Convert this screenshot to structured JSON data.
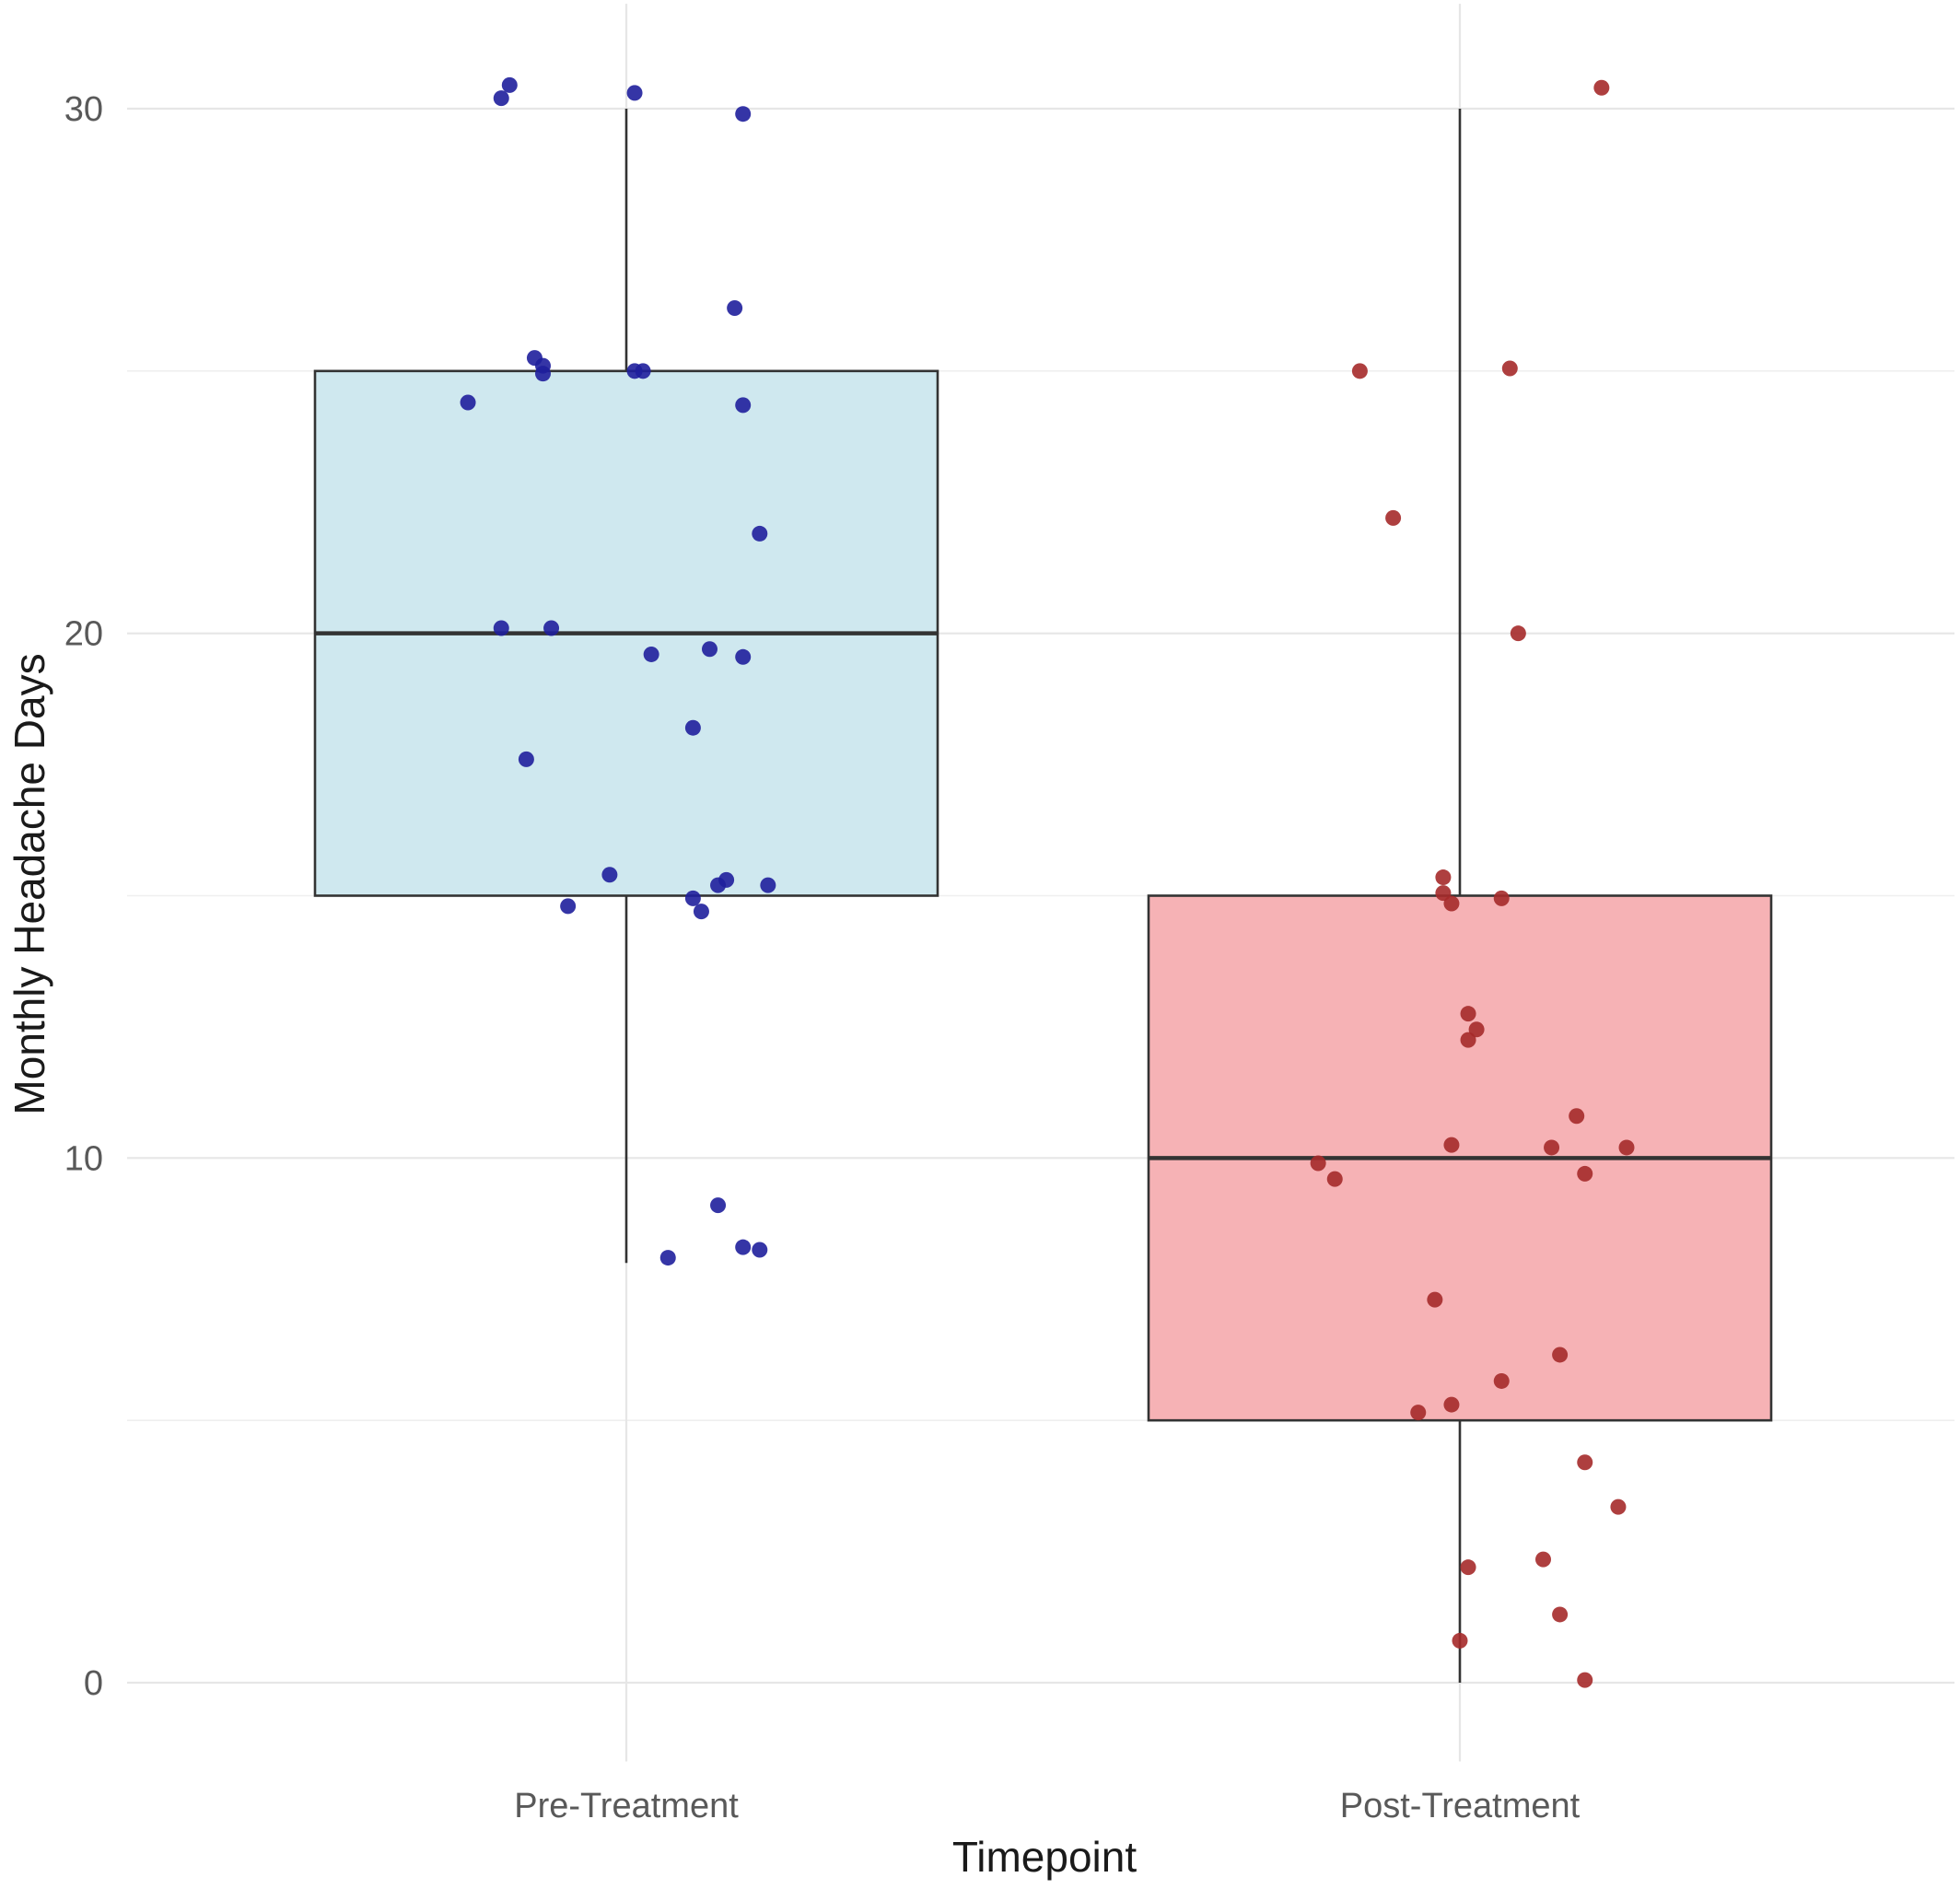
{
  "chart_data": {
    "type": "boxplot",
    "title": "",
    "xlabel": "Timepoint",
    "ylabel": "Monthly Headache Days",
    "ylim": [
      -1.5,
      32
    ],
    "yticks": [
      0,
      10,
      20,
      30
    ],
    "grid": true,
    "legend": "none",
    "categories": [
      "Pre-Treatment",
      "Post-Treatment"
    ],
    "boxes": [
      {
        "category": "Pre-Treatment",
        "whisker_low": 8,
        "q1": 15,
        "median": 20,
        "q3": 25,
        "whisker_high": 30,
        "fill": "#cfe8ef",
        "point_color": "#1f1f9c",
        "points": [
          {
            "dx": -0.15,
            "y": 30.2
          },
          {
            "dx": -0.14,
            "y": 30.45
          },
          {
            "dx": 0.01,
            "y": 30.3
          },
          {
            "dx": 0.14,
            "y": 29.9
          },
          {
            "dx": 0.13,
            "y": 26.2
          },
          {
            "dx": -0.11,
            "y": 25.25
          },
          {
            "dx": -0.1,
            "y": 25.1
          },
          {
            "dx": -0.1,
            "y": 24.95
          },
          {
            "dx": 0.01,
            "y": 25.0
          },
          {
            "dx": 0.02,
            "y": 25.0
          },
          {
            "dx": -0.19,
            "y": 24.4
          },
          {
            "dx": 0.14,
            "y": 24.35
          },
          {
            "dx": 0.16,
            "y": 21.9
          },
          {
            "dx": -0.15,
            "y": 20.1
          },
          {
            "dx": -0.09,
            "y": 20.1
          },
          {
            "dx": 0.03,
            "y": 19.6
          },
          {
            "dx": 0.1,
            "y": 19.7
          },
          {
            "dx": 0.14,
            "y": 19.55
          },
          {
            "dx": 0.08,
            "y": 18.2
          },
          {
            "dx": -0.12,
            "y": 17.6
          },
          {
            "dx": -0.02,
            "y": 15.4
          },
          {
            "dx": 0.12,
            "y": 15.3
          },
          {
            "dx": 0.11,
            "y": 15.2
          },
          {
            "dx": 0.17,
            "y": 15.2
          },
          {
            "dx": 0.08,
            "y": 14.95
          },
          {
            "dx": -0.07,
            "y": 14.8
          },
          {
            "dx": 0.09,
            "y": 14.7
          },
          {
            "dx": 0.11,
            "y": 9.1
          },
          {
            "dx": 0.14,
            "y": 8.3
          },
          {
            "dx": 0.16,
            "y": 8.25
          },
          {
            "dx": 0.05,
            "y": 8.1
          }
        ]
      },
      {
        "category": "Post-Treatment",
        "whisker_low": 0,
        "q1": 5,
        "median": 10,
        "q3": 15,
        "whisker_high": 30,
        "fill": "#f6b2b5",
        "point_color": "#a52a2a",
        "points": [
          {
            "dx": 0.17,
            "y": 30.4
          },
          {
            "dx": -0.12,
            "y": 25.0
          },
          {
            "dx": 0.06,
            "y": 25.05
          },
          {
            "dx": -0.08,
            "y": 22.2
          },
          {
            "dx": 0.07,
            "y": 20.0
          },
          {
            "dx": -0.02,
            "y": 15.35
          },
          {
            "dx": -0.02,
            "y": 15.05
          },
          {
            "dx": -0.01,
            "y": 14.85
          },
          {
            "dx": 0.05,
            "y": 14.95
          },
          {
            "dx": 0.01,
            "y": 12.75
          },
          {
            "dx": 0.02,
            "y": 12.45
          },
          {
            "dx": 0.01,
            "y": 12.25
          },
          {
            "dx": 0.14,
            "y": 10.8
          },
          {
            "dx": -0.01,
            "y": 10.25
          },
          {
            "dx": 0.11,
            "y": 10.2
          },
          {
            "dx": 0.2,
            "y": 10.2
          },
          {
            "dx": -0.17,
            "y": 9.9
          },
          {
            "dx": -0.15,
            "y": 9.6
          },
          {
            "dx": 0.15,
            "y": 9.7
          },
          {
            "dx": -0.03,
            "y": 7.3
          },
          {
            "dx": 0.12,
            "y": 6.25
          },
          {
            "dx": 0.05,
            "y": 5.75
          },
          {
            "dx": -0.01,
            "y": 5.3
          },
          {
            "dx": -0.05,
            "y": 5.15
          },
          {
            "dx": 0.15,
            "y": 4.2
          },
          {
            "dx": 0.19,
            "y": 3.35
          },
          {
            "dx": 0.01,
            "y": 2.2
          },
          {
            "dx": 0.1,
            "y": 2.35
          },
          {
            "dx": 0.12,
            "y": 1.3
          },
          {
            "dx": 0.0,
            "y": 0.8
          },
          {
            "dx": 0.15,
            "y": 0.05
          }
        ]
      }
    ]
  }
}
